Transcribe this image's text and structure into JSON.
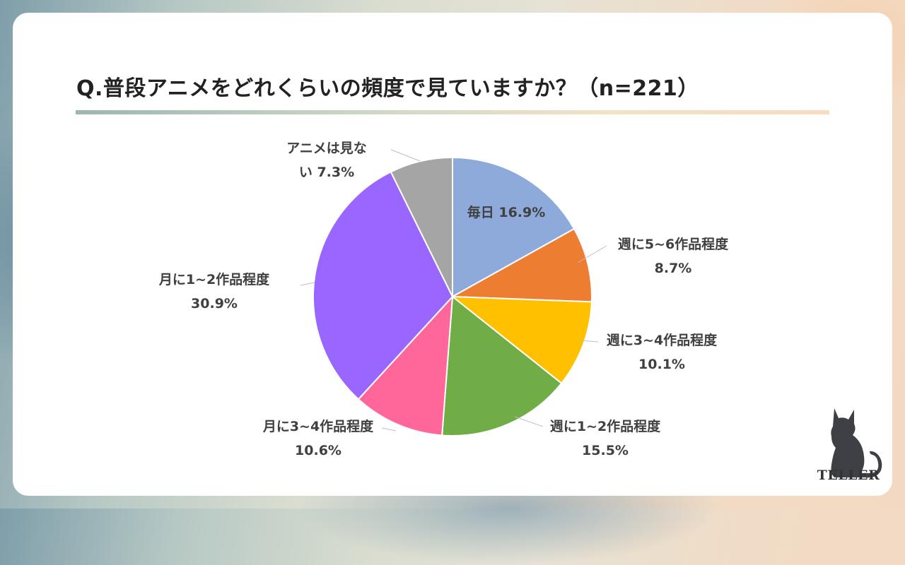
{
  "title": "Q.普段アニメをどれくらいの頻度で見ていますか？（n=221）",
  "chart_data": {
    "type": "pie",
    "title": "Q.普段アニメをどれくらいの頻度で見ていますか？（n=221）",
    "unit": "%",
    "slices": [
      {
        "label": "毎日",
        "value": 16.9,
        "color": "#8eaadb"
      },
      {
        "label": "週に5~6作品程度",
        "value": 8.7,
        "color": "#ed7d31"
      },
      {
        "label": "週に3~4作品程度",
        "value": 10.1,
        "color": "#ffc000"
      },
      {
        "label": "週に1~2作品程度",
        "value": 15.5,
        "color": "#70ad47"
      },
      {
        "label": "月に3~4作品程度",
        "value": 10.6,
        "color": "#ff6699"
      },
      {
        "label": "月に1~2作品程度",
        "value": 30.9,
        "color": "#9966ff"
      },
      {
        "label": "アニメは見ない",
        "value": 7.3,
        "color": "#a5a5a5"
      }
    ],
    "data_labels": [
      {
        "lines": [
          "毎日 16.9%"
        ]
      },
      {
        "lines": [
          "週に5~6作品程度",
          "8.7%"
        ]
      },
      {
        "lines": [
          "週に3~4作品程度",
          "10.1%"
        ]
      },
      {
        "lines": [
          "週に1~2作品程度",
          "15.5%"
        ]
      },
      {
        "lines": [
          "月に3~4作品程度",
          "10.6%"
        ]
      },
      {
        "lines": [
          "月に1~2作品程度",
          "30.9%"
        ]
      },
      {
        "lines": [
          "アニメは見な",
          "い 7.3%"
        ]
      }
    ],
    "start_angle_deg": 0,
    "direction": "clockwise",
    "legend": "none"
  },
  "logo": {
    "text": "TELLER",
    "icon": "cat-silhouette-icon"
  }
}
